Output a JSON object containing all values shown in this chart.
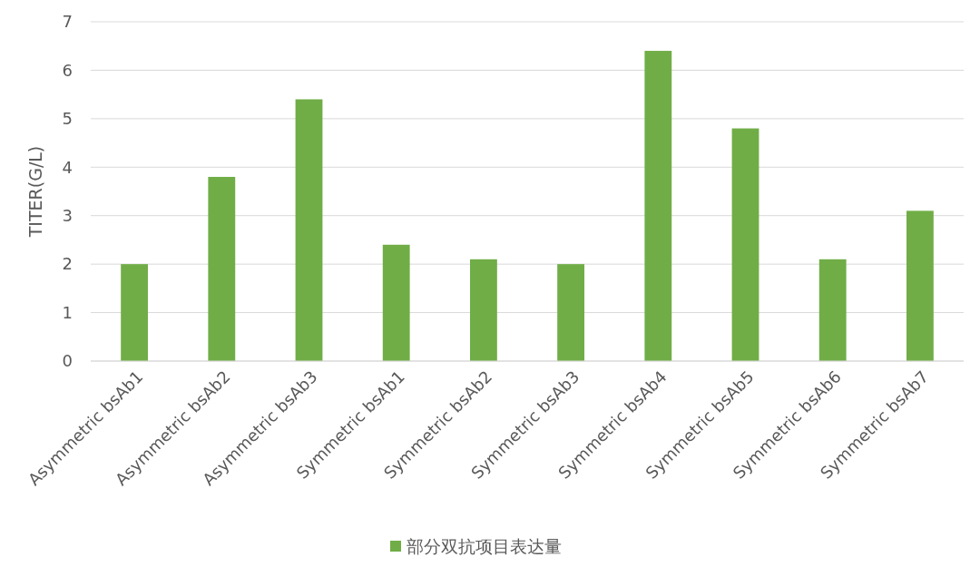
{
  "chart_data": {
    "type": "bar",
    "ylabel": "TITER(G/L)",
    "categories": [
      "Asymmetric bsAb1",
      "Asymmetric bsAb2",
      "Asymmetric bsAb3",
      "Symmetric bsAb1",
      "Symmetric bsAb2",
      "Symmetric bsAb3",
      "Symmetric bsAb4",
      "Symmetric bsAb5",
      "Symmetric bsAb6",
      "Symmetric bsAb7"
    ],
    "series": [
      {
        "name": "部分双抗项目表达量",
        "color": "#70ad47",
        "values": [
          2.0,
          3.8,
          5.4,
          2.4,
          2.1,
          2.0,
          6.4,
          4.8,
          2.1,
          3.1
        ]
      }
    ],
    "ylim": [
      0,
      7
    ],
    "yticks": [
      0,
      1,
      2,
      3,
      4,
      5,
      6,
      7
    ],
    "grid": "y",
    "legend": "bottom"
  }
}
